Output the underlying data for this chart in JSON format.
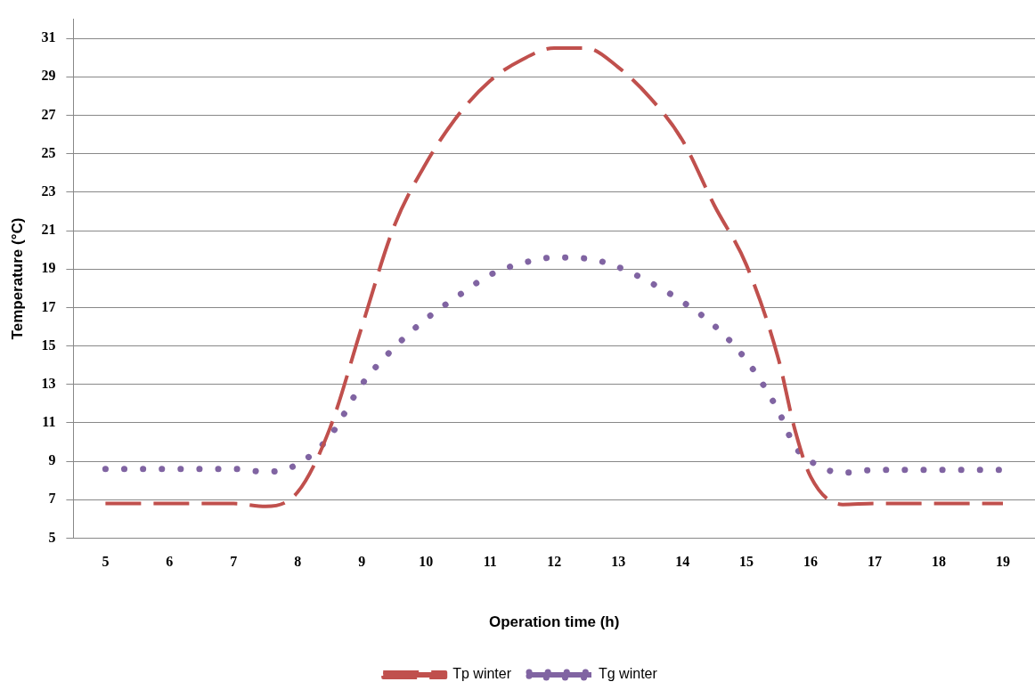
{
  "chart_data": {
    "type": "line",
    "xlabel": "Operation time (h)",
    "ylabel": "Temperature (°C)",
    "xlim": [
      4.5,
      19.5
    ],
    "xticks": [
      5,
      6,
      7,
      8,
      9,
      10,
      11,
      12,
      13,
      14,
      15,
      16,
      17,
      18,
      19
    ],
    "ylim": [
      5,
      32
    ],
    "yticks": [
      5,
      7,
      9,
      11,
      13,
      15,
      17,
      19,
      21,
      23,
      25,
      27,
      29,
      31
    ],
    "grid": "y",
    "legend": "bottom",
    "marker": "none",
    "series": [
      {
        "name": "Tp winter",
        "color": "#c0504d",
        "line_style": "dashed",
        "x": [
          5,
          5.5,
          6,
          6.5,
          7,
          7.5,
          8,
          8.5,
          9,
          9.5,
          10,
          10.5,
          11,
          11.5,
          12,
          12.5,
          13,
          13.5,
          14,
          14.5,
          15,
          15.5,
          15.75,
          16,
          16.5,
          17,
          17.5,
          18,
          18.5,
          19
        ],
        "values": [
          6.8,
          6.8,
          6.8,
          6.8,
          6.8,
          6.65,
          7.4,
          10.7,
          16.0,
          21.2,
          24.5,
          27.0,
          28.8,
          29.9,
          30.5,
          30.5,
          29.5,
          27.9,
          25.7,
          22.3,
          19.2,
          14.3,
          10.7,
          8.2,
          6.75,
          6.8,
          6.8,
          6.8,
          6.8,
          6.8
        ]
      },
      {
        "name": "Tg winter",
        "color": "#8064a2",
        "line_style": "dotted",
        "x": [
          5,
          5.5,
          6,
          6.5,
          7,
          7.5,
          8,
          8.5,
          9,
          9.5,
          10,
          10.5,
          11,
          11.5,
          12,
          12.5,
          13,
          13.5,
          14,
          14.5,
          15,
          15.5,
          15.75,
          16,
          16.5,
          17,
          17.5,
          18,
          18.5,
          19
        ],
        "values": [
          8.6,
          8.6,
          8.6,
          8.6,
          8.6,
          8.45,
          8.85,
          10.3,
          13.0,
          14.9,
          16.4,
          17.6,
          18.7,
          19.3,
          19.6,
          19.55,
          19.1,
          18.3,
          17.3,
          16.05,
          14.25,
          11.6,
          9.8,
          9.0,
          8.4,
          8.55,
          8.55,
          8.55,
          8.55,
          8.55
        ]
      }
    ]
  }
}
